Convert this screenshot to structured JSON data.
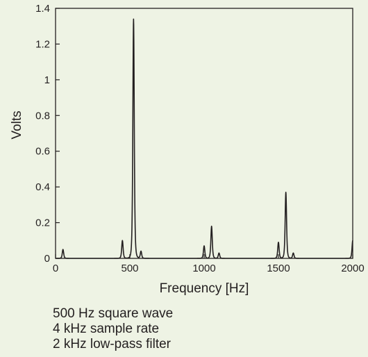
{
  "chart_data": {
    "type": "line",
    "title": "",
    "xlabel": "Frequency [Hz]",
    "ylabel": "Volts",
    "xlim": [
      0,
      2000
    ],
    "ylim": [
      0,
      1.4
    ],
    "xticks": [
      0,
      500,
      1000,
      1500,
      2000
    ],
    "xtick_labels": [
      "0",
      "500",
      "1000",
      "1500",
      "2000"
    ],
    "yticks": [
      0,
      0.2,
      0.4,
      0.6,
      0.8,
      1,
      1.2,
      1.4
    ],
    "ytick_labels": [
      "0",
      "0.2",
      "0.4",
      "0.6",
      "0.8",
      "1",
      "1.2",
      "1.4"
    ],
    "grid": false,
    "line_color": "#231f20",
    "background": "#eef3e4",
    "series": [
      {
        "peaks": [
          {
            "f": 50,
            "v": 0.05
          },
          {
            "f": 450,
            "v": 0.1
          },
          {
            "f": 525,
            "v": 1.34
          },
          {
            "f": 575,
            "v": 0.04
          },
          {
            "f": 1000,
            "v": 0.07
          },
          {
            "f": 1050,
            "v": 0.18
          },
          {
            "f": 1100,
            "v": 0.03
          },
          {
            "f": 1500,
            "v": 0.09
          },
          {
            "f": 1550,
            "v": 0.37
          },
          {
            "f": 1600,
            "v": 0.03
          },
          {
            "f": 2000,
            "v": 0.1
          }
        ]
      }
    ]
  },
  "caption": {
    "line1": "500 Hz square wave",
    "line2": "4 kHz sample rate",
    "line3": "2 kHz low-pass filter"
  }
}
